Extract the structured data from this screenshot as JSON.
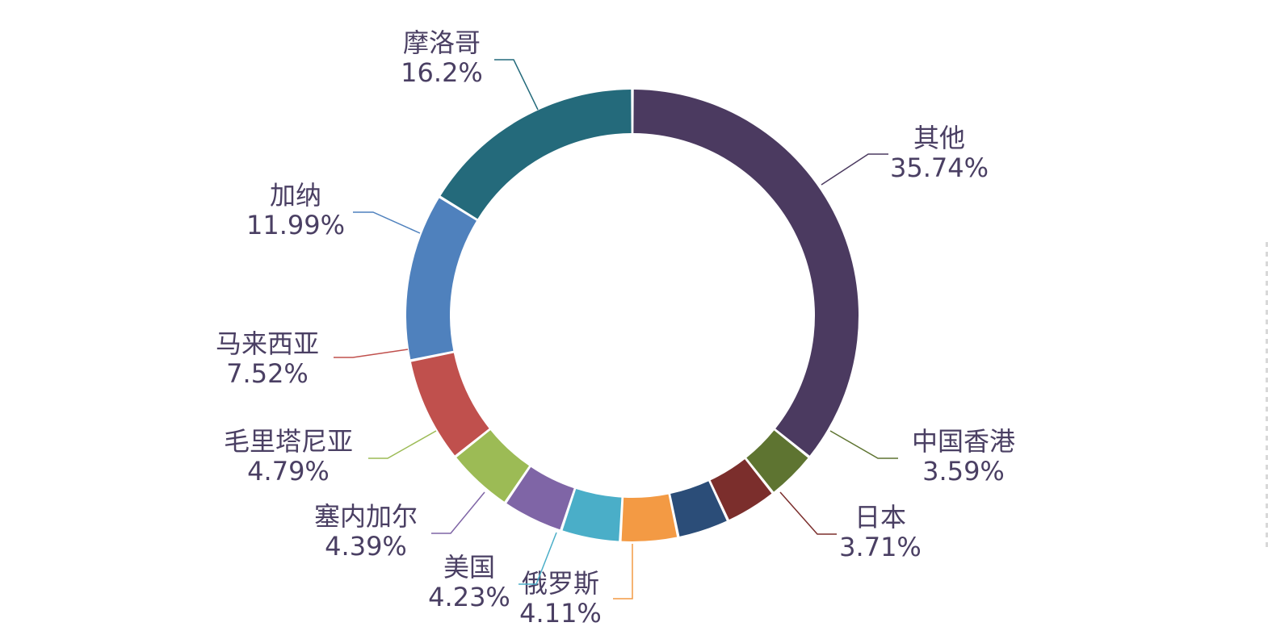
{
  "chart_data": {
    "type": "pie",
    "donut": true,
    "title": "",
    "legend": "none",
    "slices": [
      {
        "label": "其他",
        "percent_text": "35.74%",
        "value": 35.74,
        "color": "#4b3a60"
      },
      {
        "label": "中国香港",
        "percent_text": "3.59%",
        "value": 3.59,
        "color": "#5e7431"
      },
      {
        "label": "日本",
        "percent_text": "3.71%",
        "value": 3.71,
        "color": "#7b2e2c"
      },
      {
        "label": "",
        "percent_text": "",
        "value": 3.69,
        "color": "#2b4d78"
      },
      {
        "label": "俄罗斯",
        "percent_text": "4.11%",
        "value": 4.11,
        "color": "#f39a44"
      },
      {
        "label": "美国",
        "percent_text": "4.23%",
        "value": 4.23,
        "color": "#4aaec8"
      },
      {
        "label": "塞内加尔",
        "percent_text": "4.39%",
        "value": 4.39,
        "color": "#7f65a6"
      },
      {
        "label": "毛里塔尼亚",
        "percent_text": "4.79%",
        "value": 4.79,
        "color": "#9cbb55"
      },
      {
        "label": "马来西亚",
        "percent_text": "7.52%",
        "value": 7.52,
        "color": "#c0504d"
      },
      {
        "label": "加纳",
        "percent_text": "11.99%",
        "value": 11.99,
        "color": "#4f81bd"
      },
      {
        "label": "摩洛哥",
        "percent_text": "16.2%",
        "value": 16.2,
        "color": "#246a7b"
      }
    ]
  }
}
